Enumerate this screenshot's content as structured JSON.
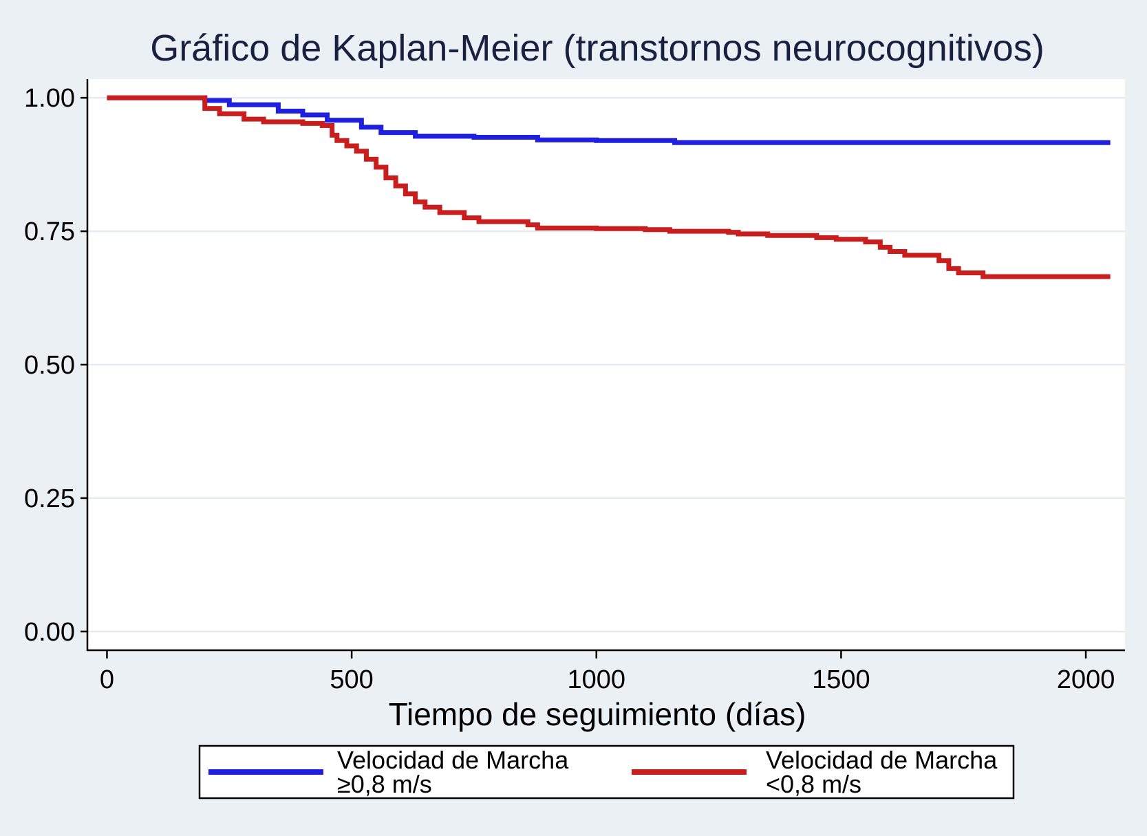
{
  "chart_data": {
    "type": "line",
    "title": "Gráfico de Kaplan-Meier (transtornos neurocognitivos)",
    "xlabel": "Tiempo de seguimiento (días)",
    "ylabel": "",
    "xlim": [
      -40,
      2080
    ],
    "ylim": [
      -0.035,
      1.035
    ],
    "x_ticks": [
      0,
      500,
      1000,
      1500,
      2000
    ],
    "x_tick_labels": [
      "0",
      "500",
      "1000",
      "1500",
      "2000"
    ],
    "y_ticks": [
      0,
      0.25,
      0.5,
      0.75,
      1
    ],
    "y_tick_labels": [
      "0.00",
      "0.25",
      "0.50",
      "0.75",
      "1.00"
    ],
    "grid": true,
    "legend_position": "bottom",
    "series": [
      {
        "name": "Velocidad de Marcha ≥0,8 m/s",
        "legend_lines": [
          "Velocidad de Marcha",
          "≥0,8 m/s"
        ],
        "color": "#1f1fe0",
        "step": true,
        "x": [
          0,
          180,
          200,
          250,
          350,
          400,
          450,
          520,
          560,
          630,
          750,
          880,
          1000,
          1160,
          1300,
          1500,
          1700,
          1900,
          2050
        ],
        "y": [
          1.0,
          1.0,
          0.995,
          0.987,
          0.975,
          0.968,
          0.958,
          0.945,
          0.935,
          0.928,
          0.926,
          0.921,
          0.92,
          0.916,
          0.916,
          0.916,
          0.916,
          0.916,
          0.916
        ]
      },
      {
        "name": "Velocidad de Marcha <0,8 m/s",
        "legend_lines": [
          "Velocidad de Marcha",
          "<0,8 m/s"
        ],
        "color": "#c81e1e",
        "step": true,
        "x": [
          0,
          195,
          200,
          230,
          280,
          320,
          400,
          440,
          460,
          470,
          490,
          510,
          530,
          550,
          570,
          590,
          610,
          630,
          650,
          680,
          730,
          760,
          860,
          880,
          1000,
          1100,
          1150,
          1270,
          1290,
          1350,
          1450,
          1490,
          1550,
          1580,
          1600,
          1630,
          1700,
          1720,
          1740,
          1790,
          1900,
          2050
        ],
        "y": [
          1.0,
          1.0,
          0.98,
          0.97,
          0.96,
          0.955,
          0.952,
          0.948,
          0.93,
          0.92,
          0.91,
          0.9,
          0.885,
          0.87,
          0.85,
          0.835,
          0.82,
          0.805,
          0.795,
          0.785,
          0.775,
          0.768,
          0.762,
          0.756,
          0.755,
          0.753,
          0.75,
          0.748,
          0.745,
          0.742,
          0.738,
          0.735,
          0.73,
          0.72,
          0.712,
          0.705,
          0.695,
          0.68,
          0.672,
          0.665,
          0.665,
          0.665
        ]
      }
    ]
  }
}
